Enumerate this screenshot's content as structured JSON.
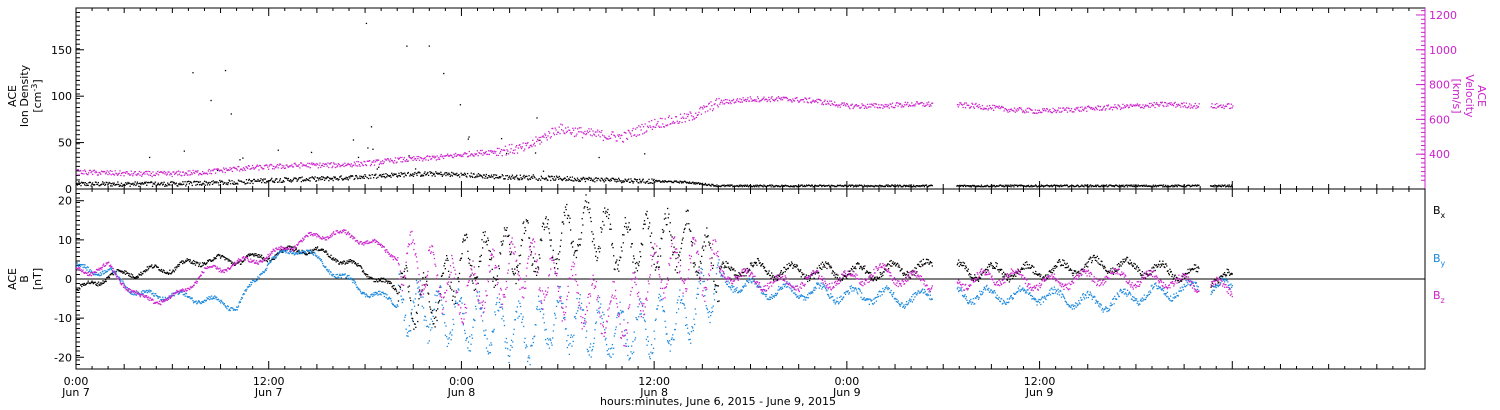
{
  "chart_data": [
    {
      "type": "scatter",
      "panel": "top",
      "left_axis": {
        "label_lines": [
          "ACE",
          "Ion Density"
        ],
        "unit": "[cm",
        "unit_sup": "-3",
        "unit_close": "]",
        "ylim": [
          0,
          195
        ],
        "ticks": [
          "0",
          "50",
          "100",
          "150"
        ]
      },
      "right_axis": {
        "label_lines": [
          "ACE",
          "Velocity"
        ],
        "unit": "[km/s]",
        "ylim": [
          200,
          1240
        ],
        "ticks": [
          "400",
          "600",
          "800",
          "1000",
          "1200"
        ],
        "color": "#cc22cc"
      },
      "x_hours": [
        0,
        2,
        4,
        6,
        8,
        10,
        12,
        14,
        16,
        18,
        20,
        22,
        24,
        26,
        28,
        30,
        32,
        34,
        36,
        38,
        40,
        42,
        44,
        46,
        48,
        50,
        52,
        54,
        56,
        58,
        60,
        62,
        64,
        66,
        68,
        70,
        72
      ],
      "series": [
        {
          "color": "#000000",
          "values": [
            6,
            6,
            6,
            6,
            7,
            8,
            10,
            11,
            12,
            14,
            16,
            17,
            16,
            14,
            13,
            12,
            11,
            10,
            9,
            8,
            4,
            4,
            4,
            4,
            4,
            4,
            4,
            4,
            4,
            4,
            4,
            4,
            4,
            4,
            4,
            4,
            4
          ]
        },
        {
          "color": "#cc22cc",
          "values": [
            300,
            295,
            290,
            290,
            300,
            320,
            330,
            340,
            340,
            350,
            370,
            380,
            400,
            420,
            440,
            550,
            520,
            500,
            580,
            610,
            700,
            720,
            720,
            710,
            680,
            680,
            690,
            690,
            680,
            660,
            650,
            660,
            670,
            680,
            690,
            680,
            680
          ]
        }
      ],
      "gaps_hours": [
        [
          53.3,
          54.8
        ],
        [
          69.9,
          70.6
        ]
      ]
    },
    {
      "type": "scatter",
      "panel": "bottom",
      "left_axis": {
        "label_lines": [
          "ACE",
          "B"
        ],
        "unit": "[nT]",
        "ylim": [
          -23,
          23
        ],
        "ticks": [
          "-20",
          "-10",
          "0",
          "10",
          "20"
        ]
      },
      "legend": [
        {
          "name": "B",
          "sub": "x",
          "color": "#000000"
        },
        {
          "name": "B",
          "sub": "y",
          "color": "#1a88dd"
        },
        {
          "name": "B",
          "sub": "z",
          "color": "#cc22cc"
        }
      ],
      "x_hours": [
        0,
        2,
        4,
        6,
        8,
        10,
        12,
        14,
        16,
        18,
        20,
        22,
        24,
        26,
        28,
        30,
        32,
        34,
        36,
        38,
        40,
        42,
        44,
        46,
        48,
        50,
        52,
        54,
        56,
        58,
        60,
        62,
        64,
        66,
        68,
        70,
        72
      ],
      "series": [
        {
          "color": "#000000",
          "values": [
            -3,
            1,
            2,
            3,
            5,
            5,
            6,
            8,
            6,
            2,
            -3,
            -6,
            4,
            6,
            8,
            10,
            14,
            8,
            10,
            10,
            2,
            3,
            2,
            2,
            2,
            2,
            3,
            3,
            2,
            2,
            2,
            3,
            4,
            3,
            2,
            1,
            0
          ]
        },
        {
          "color": "#1a88dd",
          "values": [
            3,
            2,
            -4,
            -4,
            -5,
            -7,
            5,
            8,
            2,
            -3,
            -6,
            -8,
            -10,
            -12,
            -14,
            -10,
            -12,
            -14,
            -12,
            -10,
            0,
            -2,
            -3,
            -3,
            -4,
            -4,
            -5,
            -3,
            -4,
            -4,
            -4,
            -5,
            -6,
            -4,
            -3,
            -2,
            -2
          ]
        },
        {
          "color": "#cc22cc",
          "values": [
            2,
            3,
            -5,
            -5,
            2,
            4,
            6,
            10,
            12,
            10,
            6,
            2,
            -4,
            0,
            4,
            -2,
            -6,
            -10,
            2,
            4,
            2,
            0,
            -1,
            0,
            0,
            2,
            0,
            -1,
            0,
            1,
            -1,
            0,
            1,
            0,
            0,
            -2,
            -2
          ]
        }
      ],
      "gaps_hours": [
        [
          53.3,
          54.8
        ],
        [
          69.9,
          70.6
        ]
      ]
    }
  ],
  "x_axis": {
    "xlim_hours": [
      0,
      84
    ],
    "ticks": [
      {
        "time": "0:00",
        "day": "Jun 7"
      },
      {
        "time": "12:00",
        "day": "Jun 7"
      },
      {
        "time": "0:00",
        "day": "Jun 8"
      },
      {
        "time": "12:00",
        "day": "Jun 8"
      },
      {
        "time": "0:00",
        "day": "Jun 9"
      },
      {
        "time": "12:00",
        "day": "Jun 9"
      }
    ],
    "title": "hours:minutes, June  6, 2015 - June  9, 2015"
  }
}
